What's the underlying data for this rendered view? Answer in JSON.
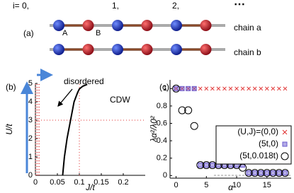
{
  "diagram": {
    "panel_label": "(a)",
    "index_labels": [
      "i= 0,",
      "1,",
      "2,",
      "⋯"
    ],
    "site_labels": [
      "A",
      "B"
    ],
    "chains": [
      "chain a",
      "chain b"
    ]
  },
  "chart_data": [
    {
      "type": "phase",
      "panel_label": "(b)",
      "xlabel": "J/t",
      "ylabel": "U/t",
      "xlim": [
        0,
        0.25
      ],
      "ylim": [
        0,
        5
      ],
      "xticks": [
        0,
        0.05,
        0.1,
        0.15,
        0.2
      ],
      "yticks": [
        0,
        1,
        2,
        3,
        4,
        5
      ],
      "annotations": [
        "disordered",
        "CDW"
      ],
      "boundary": {
        "color": "#000000",
        "x": [
          0.062,
          0.066,
          0.072,
          0.08,
          0.088,
          0.096,
          0.1,
          0.108,
          0.118
        ],
        "y": [
          0,
          1,
          2,
          3,
          4,
          4.5,
          4.7,
          4.85,
          4.95
        ]
      },
      "sample_color": "#e03030",
      "sample_x": [
        0,
        0.003,
        0.006,
        0.009,
        0.1
      ],
      "sample_y": [
        3
      ]
    },
    {
      "type": "scatter",
      "panel_label": "(c)",
      "xlabel": "α",
      "ylabel": "λα²/λ0²",
      "xlim": [
        -1,
        19
      ],
      "ylim": [
        -0.03,
        1.1
      ],
      "xticks": [
        0,
        5,
        10,
        15
      ],
      "yticks": [
        0,
        0.2,
        0.4,
        0.6,
        0.8,
        1
      ],
      "x": [
        0,
        1,
        2,
        3,
        4,
        5,
        6,
        7,
        8,
        9,
        10,
        11,
        12,
        13,
        14,
        15,
        16,
        17,
        18
      ],
      "series": [
        {
          "name": "(U,J)=(0,0)",
          "color": "#e03030",
          "marker": "x",
          "values": [
            1,
            1,
            1,
            1,
            1,
            1,
            1,
            1,
            1,
            1,
            1,
            1,
            1,
            1,
            1,
            1,
            1,
            1,
            1
          ]
        },
        {
          "name": "(5t,0)",
          "color": "#6a5acd",
          "marker": "square",
          "values": [
            1,
            1,
            1,
            1,
            0.12,
            0.12,
            0.12,
            0.12,
            0.12,
            0.12,
            0.12,
            0.12,
            0.03,
            0.03,
            0.03,
            0.03,
            0.03,
            0.03,
            0.03
          ]
        },
        {
          "name": "(5t,0.018t)",
          "color": "#000000",
          "marker": "circle",
          "values": [
            1,
            0.75,
            0.75,
            0.57,
            0.12,
            0.12,
            0.12,
            0.12,
            0.12,
            0.12,
            0.12,
            0.09,
            0.03,
            0.03,
            0.03,
            0.03,
            0.03,
            0.03,
            0.03
          ]
        }
      ]
    }
  ]
}
